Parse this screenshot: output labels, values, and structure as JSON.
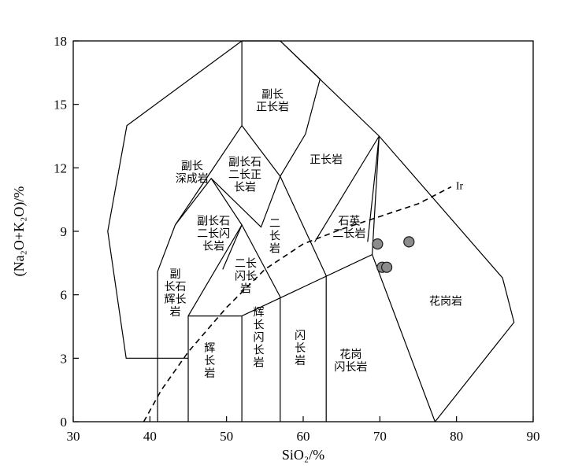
{
  "chart_data": {
    "type": "scatter",
    "xlabel": "SiO₂/%",
    "ylabel": "(Na₂O+K₂O)/%",
    "xlim": [
      30,
      90
    ],
    "ylim": [
      0,
      18
    ],
    "xticks": [
      "30",
      "40",
      "50",
      "60",
      "70",
      "80",
      "90"
    ],
    "yticks": [
      "0",
      "3",
      "6",
      "9",
      "12",
      "15",
      "18"
    ],
    "fields": [
      {
        "id": "foid-plutonite",
        "lines": [
          "副长",
          "深成岩"
        ],
        "label_at": [
          45.5,
          11.8
        ]
      },
      {
        "id": "foid-syenite",
        "lines": [
          "副长",
          "正长岩"
        ],
        "label_at": [
          56,
          15.2
        ]
      },
      {
        "id": "foid-monzosyenite",
        "lines": [
          "副长石",
          "二长正",
          "长岩"
        ],
        "label_at": [
          52.4,
          11.7
        ]
      },
      {
        "id": "syenite",
        "lines": [
          "正长岩"
        ],
        "label_at": [
          63,
          12.4
        ]
      },
      {
        "id": "foid-monzodiorite",
        "lines": [
          "副长石",
          "二长闪",
          "长岩"
        ],
        "label_at": [
          48.3,
          8.9
        ]
      },
      {
        "id": "monzonite",
        "lines": [
          "二",
          "长",
          "岩"
        ],
        "label_at": [
          56.3,
          8.8
        ]
      },
      {
        "id": "quartz-monzonite",
        "lines": [
          "石英",
          "二长岩"
        ],
        "label_at": [
          66,
          9.2
        ]
      },
      {
        "id": "monzodiorite",
        "lines": [
          "二长",
          "闪长",
          "岩"
        ],
        "label_at": [
          52.5,
          6.9
        ]
      },
      {
        "id": "foid-gabbro",
        "lines": [
          "副",
          "长石",
          "辉长",
          "岩"
        ],
        "label_at": [
          43.3,
          6.1
        ]
      },
      {
        "id": "gabbro",
        "lines": [
          "辉",
          "长",
          "岩"
        ],
        "label_at": [
          47.8,
          2.9
        ]
      },
      {
        "id": "monzogabbro",
        "lines": [
          "辉",
          "长",
          "闪",
          "长",
          "岩"
        ],
        "label_at": [
          54.2,
          4.0
        ]
      },
      {
        "id": "diorite",
        "lines": [
          "闪",
          "长",
          "岩"
        ],
        "label_at": [
          59.6,
          3.5
        ]
      },
      {
        "id": "granodiorite",
        "lines": [
          "花岗",
          "闪长岩"
        ],
        "label_at": [
          66.2,
          2.9
        ]
      },
      {
        "id": "granite",
        "lines": [
          "花岗岩"
        ],
        "label_at": [
          78.6,
          5.7
        ]
      }
    ],
    "boundaries": [
      [
        [
          52,
          18
        ],
        [
          57,
          18
        ],
        [
          69.9,
          13.5
        ],
        [
          86,
          6.8
        ],
        [
          87.5,
          4.7
        ],
        [
          77.2,
          0
        ]
      ],
      [
        [
          52,
          18
        ],
        [
          52,
          14
        ]
      ],
      [
        [
          52,
          14
        ],
        [
          43.3,
          9.3
        ],
        [
          41,
          7.1
        ],
        [
          41,
          0
        ]
      ],
      [
        [
          52,
          14
        ],
        [
          57,
          11.6
        ]
      ],
      [
        [
          57,
          11.6
        ],
        [
          54.5,
          9.2
        ],
        [
          48,
          11.5
        ],
        [
          43.3,
          9.3
        ]
      ],
      [
        [
          48,
          11.5
        ],
        [
          52,
          9.3
        ],
        [
          45,
          5
        ],
        [
          45,
          0
        ]
      ],
      [
        [
          52,
          9.3
        ],
        [
          49.5,
          7.2
        ]
      ],
      [
        [
          52,
          9.3
        ],
        [
          57,
          5.9
        ],
        [
          57,
          0
        ]
      ],
      [
        [
          57,
          11.6
        ],
        [
          63,
          6.9
        ],
        [
          63,
          0
        ]
      ],
      [
        [
          57,
          11.6
        ],
        [
          60.3,
          13.6
        ],
        [
          62.2,
          16.2
        ],
        [
          57,
          18
        ]
      ],
      [
        [
          61.5,
          8.5
        ],
        [
          69.9,
          13.5
        ],
        [
          69,
          7.9
        ]
      ],
      [
        [
          69.9,
          13.5
        ],
        [
          68.4,
          8.5
        ]
      ],
      [
        [
          52,
          5
        ],
        [
          69,
          7.9
        ],
        [
          77.2,
          0
        ]
      ],
      [
        [
          52,
          18
        ],
        [
          37,
          14
        ],
        [
          34.5,
          9
        ],
        [
          36.9,
          3
        ],
        [
          45,
          3
        ]
      ],
      [
        [
          45,
          5
        ],
        [
          52,
          5
        ],
        [
          52,
          0
        ]
      ]
    ],
    "dividing_line": {
      "name": "Ir",
      "points": [
        [
          39.2,
          0
        ],
        [
          41.5,
          1.5
        ],
        [
          45,
          3.3
        ],
        [
          50,
          5.4
        ],
        [
          55,
          7.2
        ],
        [
          60,
          8.4
        ],
        [
          65,
          9.1
        ],
        [
          70,
          9.7
        ],
        [
          75,
          10.3
        ],
        [
          79.3,
          11.1
        ]
      ]
    },
    "samples": [
      {
        "x": 69.7,
        "y": 8.4
      },
      {
        "x": 73.8,
        "y": 8.5
      },
      {
        "x": 70.3,
        "y": 7.3
      },
      {
        "x": 70.9,
        "y": 7.3
      }
    ]
  }
}
